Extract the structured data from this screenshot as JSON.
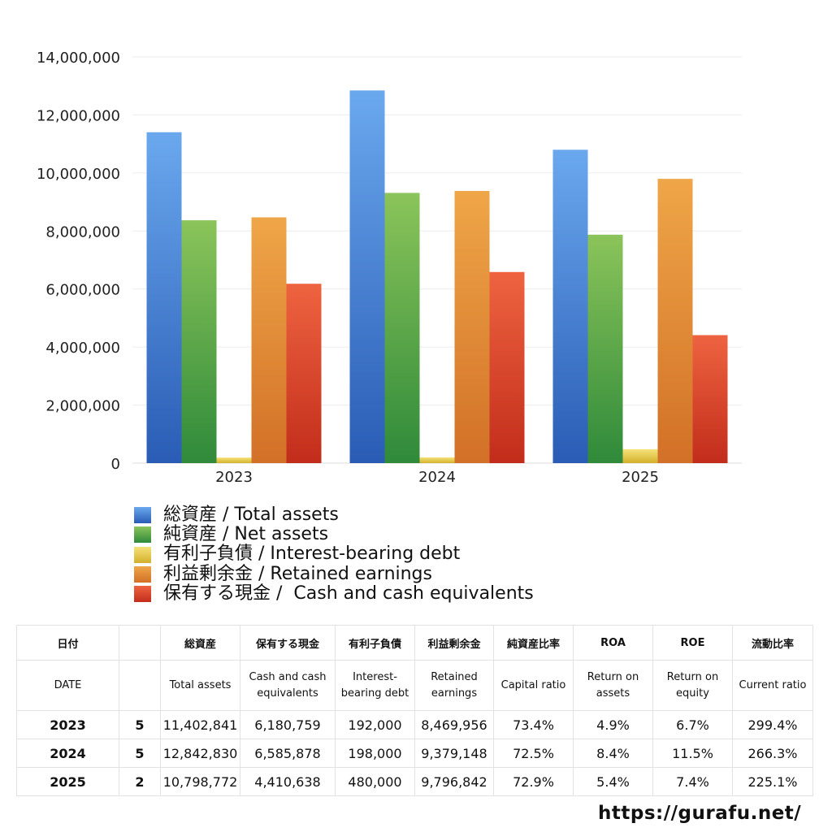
{
  "chart_data": {
    "type": "bar",
    "categories": [
      "2023",
      "2024",
      "2025"
    ],
    "series": [
      {
        "name": "総資産 / Total assets",
        "values": [
          11402841,
          12842830,
          10798772
        ],
        "color": "#4f8ddc"
      },
      {
        "name": "純資産 / Net assets",
        "values": [
          8369000,
          9312000,
          7872000
        ],
        "color": "#5aa84a"
      },
      {
        "name": "有利子負債 / Interest-bearing debt",
        "values": [
          192000,
          198000,
          480000
        ],
        "color": "#e6c84a"
      },
      {
        "name": "利益剰余金 / Retained earnings",
        "values": [
          8469956,
          9379148,
          9796842
        ],
        "color": "#e28b3a"
      },
      {
        "name": "保有する現金 /  Cash and cash equivalents",
        "values": [
          6180759,
          6585878,
          4410638
        ],
        "color": "#dc4a2e"
      }
    ],
    "y_ticks": [
      "0",
      "2,000,000",
      "4,000,000",
      "6,000,000",
      "8,000,000",
      "10,000,000",
      "12,000,000",
      "14,000,000"
    ],
    "ylim": [
      0,
      14000000
    ],
    "grid": true,
    "legend_position": "bottom"
  },
  "table": {
    "header_jp": [
      "日付",
      "",
      "総資産",
      "保有する現金",
      "有利子負債",
      "利益剰余金",
      "純資産比率",
      "ROA",
      "ROE",
      "流動比率"
    ],
    "header_en": [
      "DATE",
      "",
      "Total assets",
      "Cash and cash equivalents",
      "Interest-bearing debt",
      "Retained earnings",
      "Capital ratio",
      "Return on assets",
      "Return on equity",
      "Current ratio"
    ],
    "rows": [
      [
        "2023",
        "5",
        "11,402,841",
        "6,180,759",
        "192,000",
        "8,469,956",
        "73.4%",
        "4.9%",
        "6.7%",
        "299.4%"
      ],
      [
        "2024",
        "5",
        "12,842,830",
        "6,585,878",
        "198,000",
        "9,379,148",
        "72.5%",
        "8.4%",
        "11.5%",
        "266.3%"
      ],
      [
        "2025",
        "2",
        "10,798,772",
        "4,410,638",
        "480,000",
        "9,796,842",
        "72.9%",
        "5.4%",
        "7.4%",
        "225.1%"
      ]
    ]
  },
  "footer": {
    "url": "https://gurafu.net/"
  }
}
